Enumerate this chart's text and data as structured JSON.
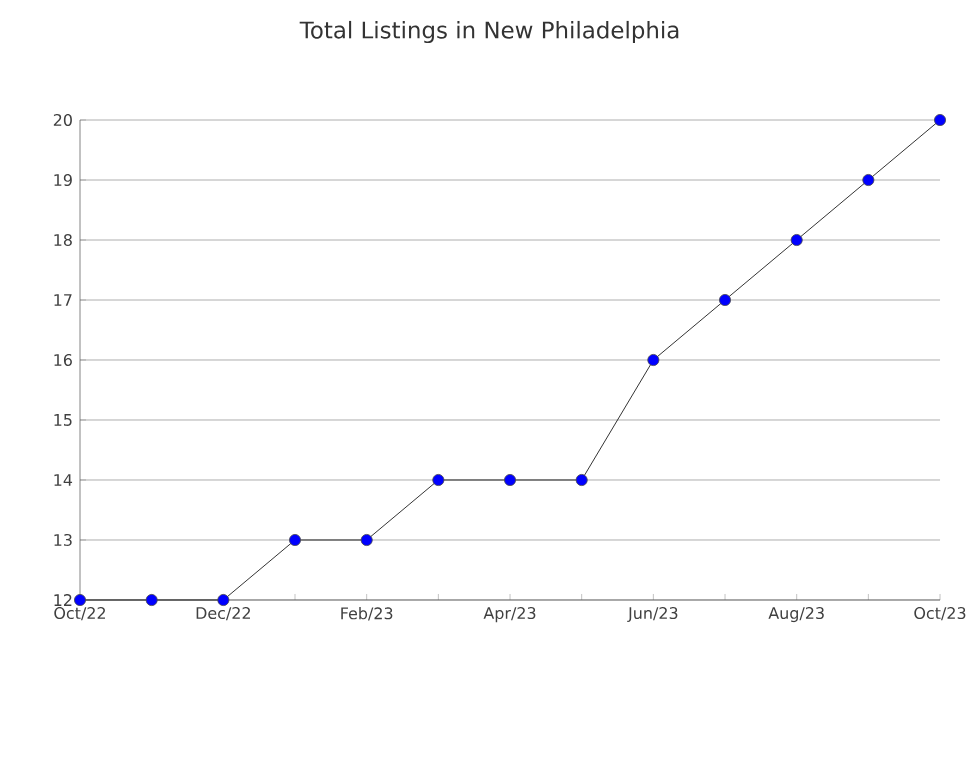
{
  "chart_data": {
    "type": "line",
    "title": "Total Listings in New Philadelphia",
    "categories": [
      "Oct/22",
      null,
      "Dec/22",
      null,
      "Feb/23",
      null,
      "Apr/23",
      null,
      "Jun/23",
      null,
      "Aug/23",
      null,
      "Oct/23"
    ],
    "values": [
      12,
      12,
      12,
      13,
      13,
      14,
      14,
      14,
      16,
      17,
      18,
      19,
      20
    ],
    "color": "#0000ff",
    "marker": "circle",
    "line_style": "solid",
    "ylim": [
      12,
      20
    ],
    "yticks": [
      12,
      13,
      14,
      15,
      16,
      17,
      18,
      19,
      20
    ],
    "grid": "y"
  }
}
